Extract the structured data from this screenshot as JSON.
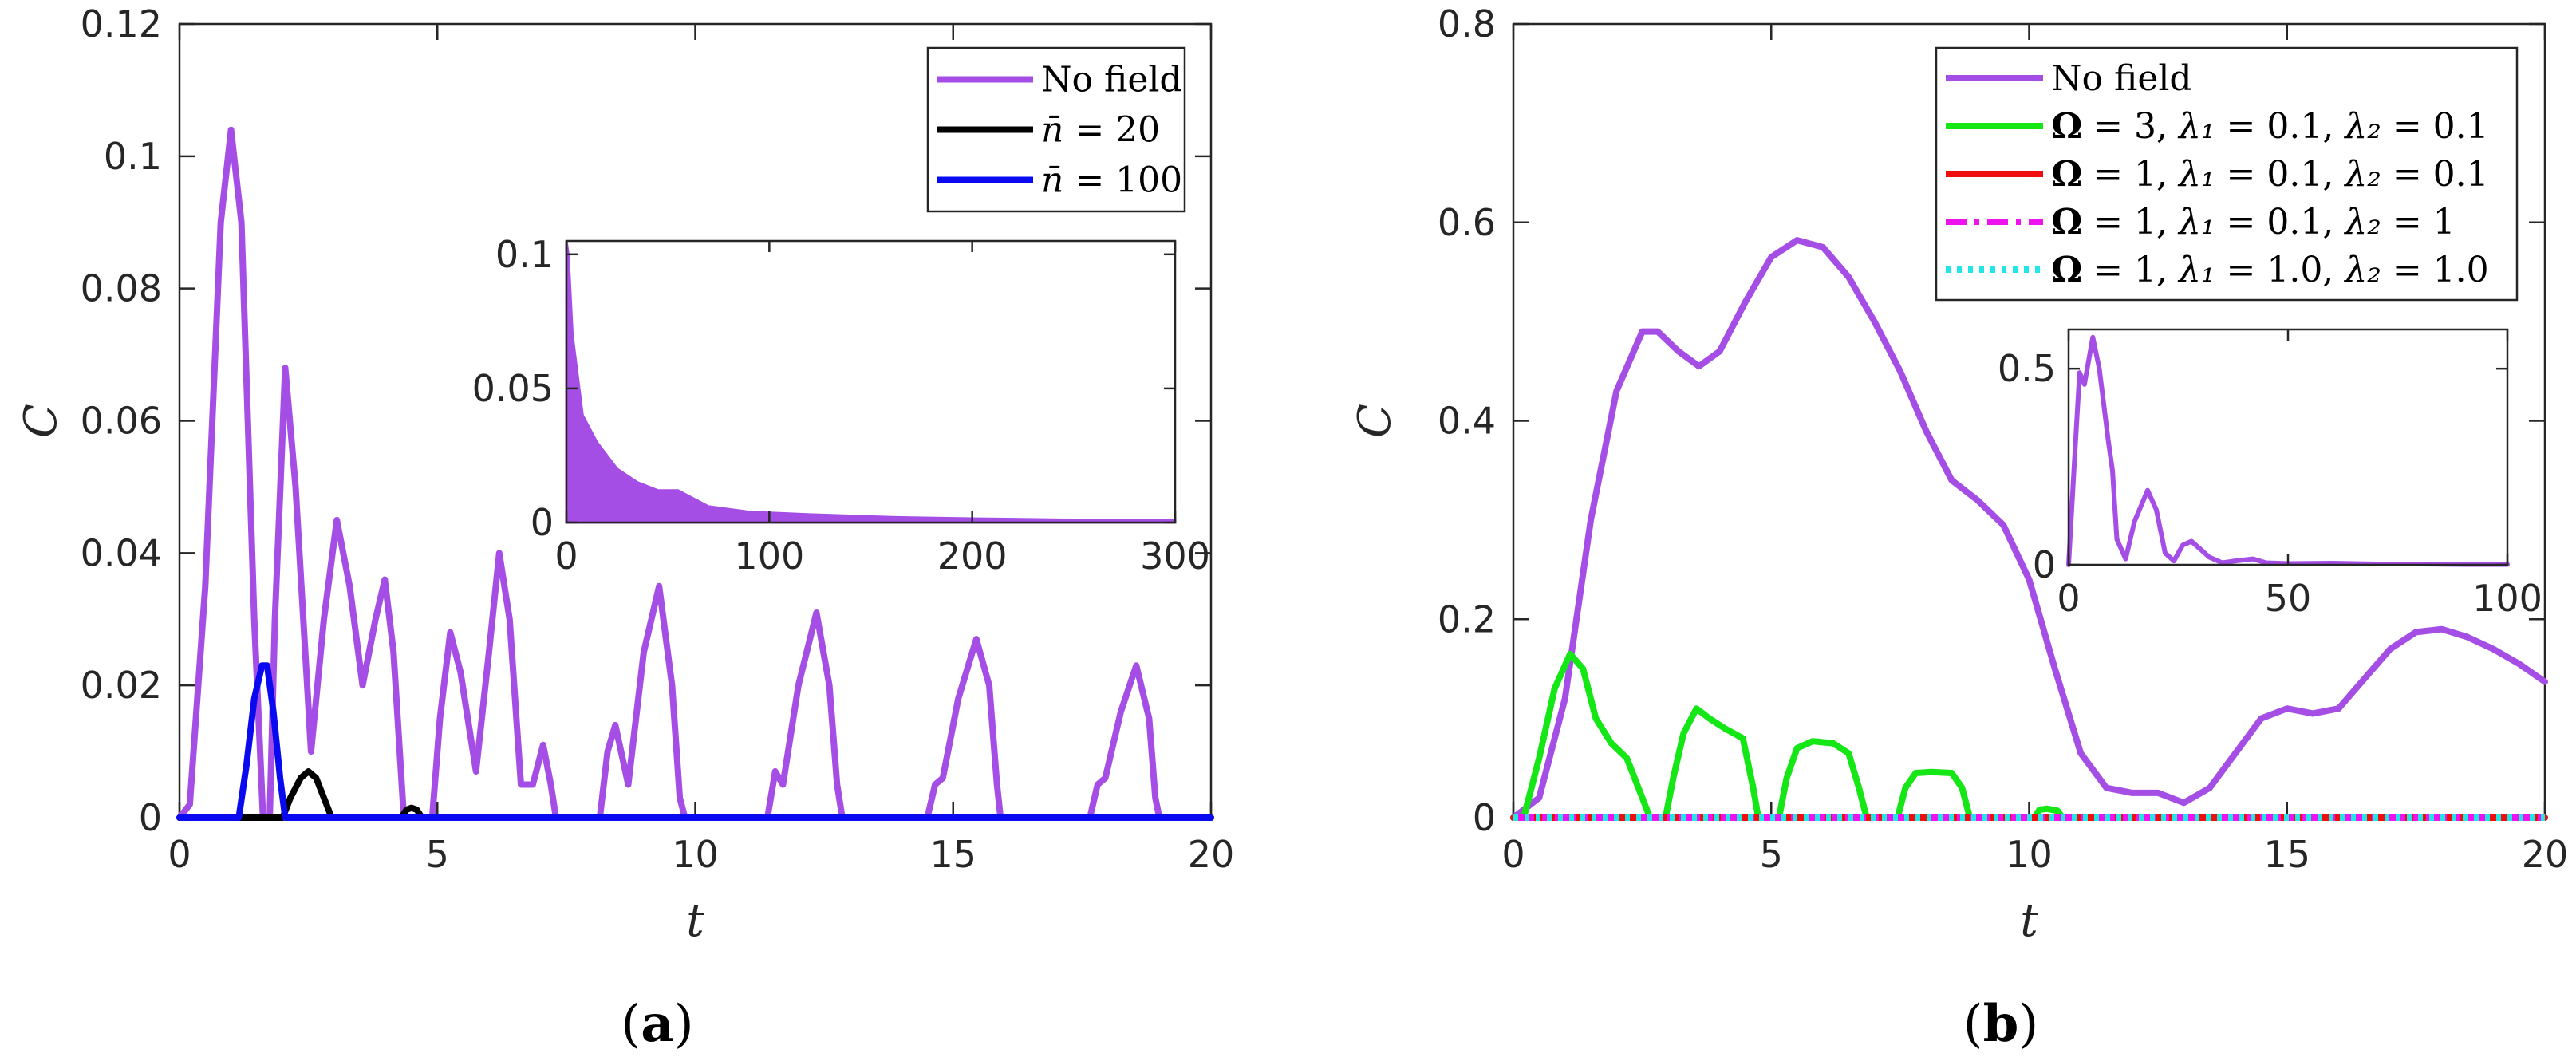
{
  "panel_labels": {
    "a": {
      "open": "(",
      "letter": "a",
      "close": ")"
    },
    "b": {
      "open": "(",
      "letter": "b",
      "close": ")"
    }
  },
  "chart_data": [
    {
      "id": "a",
      "type": "line",
      "xlabel": "t",
      "ylabel": "C",
      "xlim": [
        0,
        20
      ],
      "ylim": [
        0,
        0.12
      ],
      "xticks": [
        "0",
        "5",
        "10",
        "15",
        "20"
      ],
      "yticks": [
        "0",
        "0.02",
        "0.04",
        "0.06",
        "0.08",
        "0.1",
        "0.12"
      ],
      "grid": false,
      "legend_position": "top-right",
      "series": [
        {
          "name": "No field",
          "color": "#a54ee6",
          "dash": "solid",
          "points": [
            [
              0,
              0
            ],
            [
              0.2,
              0.002
            ],
            [
              0.5,
              0.035
            ],
            [
              0.8,
              0.09
            ],
            [
              1.0,
              0.104
            ],
            [
              1.2,
              0.09
            ],
            [
              1.45,
              0.03
            ],
            [
              1.62,
              0
            ],
            [
              1.75,
              0
            ],
            [
              1.85,
              0.03
            ],
            [
              2.05,
              0.068
            ],
            [
              2.25,
              0.05
            ],
            [
              2.55,
              0.01
            ],
            [
              2.8,
              0.03
            ],
            [
              3.05,
              0.045
            ],
            [
              3.3,
              0.035
            ],
            [
              3.55,
              0.02
            ],
            [
              3.8,
              0.03
            ],
            [
              3.98,
              0.036
            ],
            [
              4.15,
              0.025
            ],
            [
              4.35,
              0
            ],
            [
              4.9,
              0
            ],
            [
              5.05,
              0.015
            ],
            [
              5.25,
              0.028
            ],
            [
              5.45,
              0.022
            ],
            [
              5.75,
              0.007
            ],
            [
              6.0,
              0.025
            ],
            [
              6.2,
              0.04
            ],
            [
              6.4,
              0.03
            ],
            [
              6.62,
              0.005
            ],
            [
              6.85,
              0.005
            ],
            [
              7.05,
              0.011
            ],
            [
              7.2,
              0.005
            ],
            [
              7.3,
              0
            ],
            [
              8.15,
              0
            ],
            [
              8.3,
              0.01
            ],
            [
              8.45,
              0.014
            ],
            [
              8.7,
              0.005
            ],
            [
              9.0,
              0.025
            ],
            [
              9.3,
              0.035
            ],
            [
              9.55,
              0.02
            ],
            [
              9.7,
              0.003
            ],
            [
              9.8,
              0
            ],
            [
              11.4,
              0
            ],
            [
              11.55,
              0.007
            ],
            [
              11.7,
              0.005
            ],
            [
              12.0,
              0.02
            ],
            [
              12.35,
              0.031
            ],
            [
              12.6,
              0.02
            ],
            [
              12.75,
              0.005
            ],
            [
              12.85,
              0
            ],
            [
              14.5,
              0
            ],
            [
              14.65,
              0.005
            ],
            [
              14.8,
              0.006
            ],
            [
              15.1,
              0.018
            ],
            [
              15.45,
              0.027
            ],
            [
              15.7,
              0.02
            ],
            [
              15.85,
              0.005
            ],
            [
              15.92,
              0
            ],
            [
              17.65,
              0
            ],
            [
              17.8,
              0.005
            ],
            [
              17.95,
              0.006
            ],
            [
              18.25,
              0.016
            ],
            [
              18.55,
              0.023
            ],
            [
              18.8,
              0.015
            ],
            [
              18.92,
              0.003
            ],
            [
              19.0,
              0
            ],
            [
              20,
              0
            ]
          ]
        },
        {
          "name": "n̄ = 20",
          "color": "#000000",
          "dash": "solid",
          "points": [
            [
              0,
              0
            ],
            [
              2.0,
              0
            ],
            [
              2.15,
              0.003
            ],
            [
              2.35,
              0.006
            ],
            [
              2.5,
              0.007
            ],
            [
              2.65,
              0.006
            ],
            [
              2.85,
              0.002
            ],
            [
              2.95,
              0
            ],
            [
              4.3,
              0
            ],
            [
              4.4,
              0.0012
            ],
            [
              4.5,
              0.0015
            ],
            [
              4.6,
              0.0012
            ],
            [
              4.7,
              0
            ],
            [
              20,
              0
            ]
          ]
        },
        {
          "name": "n̄ = 100",
          "color": "#0a0af0",
          "dash": "solid",
          "points": [
            [
              0,
              0
            ],
            [
              1.15,
              0
            ],
            [
              1.3,
              0.008
            ],
            [
              1.45,
              0.018
            ],
            [
              1.6,
              0.023
            ],
            [
              1.7,
              0.023
            ],
            [
              1.82,
              0.016
            ],
            [
              1.95,
              0.006
            ],
            [
              2.05,
              0
            ],
            [
              20,
              0
            ]
          ]
        }
      ],
      "inset": {
        "xlim": [
          0,
          300
        ],
        "ylim": [
          0,
          0.105
        ],
        "xticks": [
          "0",
          "100",
          "200",
          "300"
        ],
        "yticks": [
          "0",
          "0.05",
          "0.1"
        ],
        "series": [
          {
            "name": "No field",
            "color": "#a54ee6",
            "envelope": [
              [
                0,
                0.105
              ],
              [
                1,
                0.1
              ],
              [
                3,
                0.07
              ],
              [
                8,
                0.04
              ],
              [
                15,
                0.03
              ],
              [
                25,
                0.02
              ],
              [
                35,
                0.015
              ],
              [
                45,
                0.012
              ],
              [
                55,
                0.012
              ],
              [
                70,
                0.006
              ],
              [
                90,
                0.004
              ],
              [
                120,
                0.003
              ],
              [
                160,
                0.002
              ],
              [
                200,
                0.0015
              ],
              [
                250,
                0.001
              ],
              [
                300,
                0.0008
              ]
            ]
          }
        ]
      }
    },
    {
      "id": "b",
      "type": "line",
      "xlabel": "t",
      "ylabel": "C",
      "xlim": [
        0,
        20
      ],
      "ylim": [
        0,
        0.8
      ],
      "xticks": [
        "0",
        "5",
        "10",
        "15",
        "20"
      ],
      "yticks": [
        "0",
        "0.2",
        "0.4",
        "0.6",
        "0.8"
      ],
      "grid": false,
      "legend_position": "top-right",
      "series": [
        {
          "name": "No field",
          "color": "#a54ee6",
          "dash": "solid",
          "points": [
            [
              0,
              0
            ],
            [
              0.5,
              0.02
            ],
            [
              1.0,
              0.12
            ],
            [
              1.5,
              0.3
            ],
            [
              2.0,
              0.43
            ],
            [
              2.5,
              0.49
            ],
            [
              2.8,
              0.49
            ],
            [
              3.2,
              0.47
            ],
            [
              3.6,
              0.455
            ],
            [
              4.0,
              0.47
            ],
            [
              4.5,
              0.52
            ],
            [
              5.0,
              0.565
            ],
            [
              5.5,
              0.582
            ],
            [
              6.0,
              0.575
            ],
            [
              6.5,
              0.545
            ],
            [
              7.0,
              0.5
            ],
            [
              7.5,
              0.45
            ],
            [
              8.0,
              0.39
            ],
            [
              8.5,
              0.34
            ],
            [
              9.0,
              0.32
            ],
            [
              9.5,
              0.295
            ],
            [
              10.0,
              0.24
            ],
            [
              10.5,
              0.15
            ],
            [
              11.0,
              0.065
            ],
            [
              11.5,
              0.03
            ],
            [
              12.0,
              0.025
            ],
            [
              12.5,
              0.025
            ],
            [
              13.0,
              0.015
            ],
            [
              13.5,
              0.03
            ],
            [
              14.0,
              0.065
            ],
            [
              14.5,
              0.1
            ],
            [
              15.0,
              0.11
            ],
            [
              15.5,
              0.105
            ],
            [
              16.0,
              0.11
            ],
            [
              16.5,
              0.14
            ],
            [
              17.0,
              0.17
            ],
            [
              17.5,
              0.187
            ],
            [
              18.0,
              0.19
            ],
            [
              18.5,
              0.182
            ],
            [
              19.0,
              0.17
            ],
            [
              19.5,
              0.155
            ],
            [
              20,
              0.137
            ]
          ]
        },
        {
          "name": "Ω = 3,  λ₁ = 0.1,  λ₂ = 0.1",
          "color": "#15e615",
          "dash": "solid",
          "points": [
            [
              0,
              0
            ],
            [
              0.2,
              0
            ],
            [
              0.5,
              0.06
            ],
            [
              0.8,
              0.13
            ],
            [
              1.1,
              0.165
            ],
            [
              1.35,
              0.15
            ],
            [
              1.6,
              0.1
            ],
            [
              1.9,
              0.075
            ],
            [
              2.2,
              0.06
            ],
            [
              2.5,
              0.02
            ],
            [
              2.65,
              0
            ],
            [
              2.95,
              0
            ],
            [
              3.1,
              0.04
            ],
            [
              3.3,
              0.085
            ],
            [
              3.55,
              0.11
            ],
            [
              3.8,
              0.1
            ],
            [
              4.1,
              0.09
            ],
            [
              4.45,
              0.08
            ],
            [
              4.65,
              0.03
            ],
            [
              4.75,
              0
            ],
            [
              5.15,
              0
            ],
            [
              5.3,
              0.04
            ],
            [
              5.5,
              0.07
            ],
            [
              5.8,
              0.077
            ],
            [
              6.2,
              0.075
            ],
            [
              6.5,
              0.065
            ],
            [
              6.7,
              0.03
            ],
            [
              6.85,
              0
            ],
            [
              7.45,
              0
            ],
            [
              7.6,
              0.03
            ],
            [
              7.8,
              0.045
            ],
            [
              8.1,
              0.046
            ],
            [
              8.5,
              0.045
            ],
            [
              8.7,
              0.03
            ],
            [
              8.85,
              0
            ],
            [
              10.1,
              0
            ],
            [
              10.2,
              0.008
            ],
            [
              10.35,
              0.009
            ],
            [
              10.55,
              0.007
            ],
            [
              10.65,
              0
            ],
            [
              20,
              0
            ]
          ]
        },
        {
          "name": "Ω = 1,  λ₁ = 0.1,  λ₂ = 0.1",
          "color": "#ee0e0e",
          "dash": "solid",
          "points": [
            [
              0,
              0
            ],
            [
              20,
              0
            ]
          ]
        },
        {
          "name": "Ω = 1,  λ₁ = 0.1,  λ₂ = 1",
          "color": "#ee12ee",
          "dash": "dashdot",
          "points": [
            [
              0,
              0
            ],
            [
              20,
              0
            ]
          ]
        },
        {
          "name": "Ω = 1,  λ₁ = 1.0,  λ₂ = 1.0",
          "color": "#22e6e6",
          "dash": "dotted",
          "points": [
            [
              0,
              0
            ],
            [
              20,
              0
            ]
          ]
        }
      ],
      "inset": {
        "xlim": [
          0,
          100
        ],
        "ylim": [
          0,
          0.6
        ],
        "xticks": [
          "0",
          "50",
          "100"
        ],
        "yticks": [
          "0",
          "0.5"
        ],
        "series": [
          {
            "name": "No field",
            "color": "#a54ee6",
            "points": [
              [
                0,
                0
              ],
              [
                1.5,
                0.3
              ],
              [
                2.5,
                0.49
              ],
              [
                3.6,
                0.46
              ],
              [
                5.5,
                0.58
              ],
              [
                7,
                0.5
              ],
              [
                9,
                0.32
              ],
              [
                10,
                0.24
              ],
              [
                11,
                0.065
              ],
              [
                13,
                0.015
              ],
              [
                15,
                0.11
              ],
              [
                18,
                0.19
              ],
              [
                20,
                0.14
              ],
              [
                22,
                0.03
              ],
              [
                24,
                0.01
              ],
              [
                26,
                0.05
              ],
              [
                28,
                0.06
              ],
              [
                30,
                0.04
              ],
              [
                32,
                0.02
              ],
              [
                35,
                0.005
              ],
              [
                38,
                0.01
              ],
              [
                42,
                0.015
              ],
              [
                45,
                0.005
              ],
              [
                50,
                0.003
              ],
              [
                60,
                0.004
              ],
              [
                70,
                0.002
              ],
              [
                80,
                0.002
              ],
              [
                90,
                0.001
              ],
              [
                100,
                0.001
              ]
            ]
          }
        ]
      }
    }
  ]
}
